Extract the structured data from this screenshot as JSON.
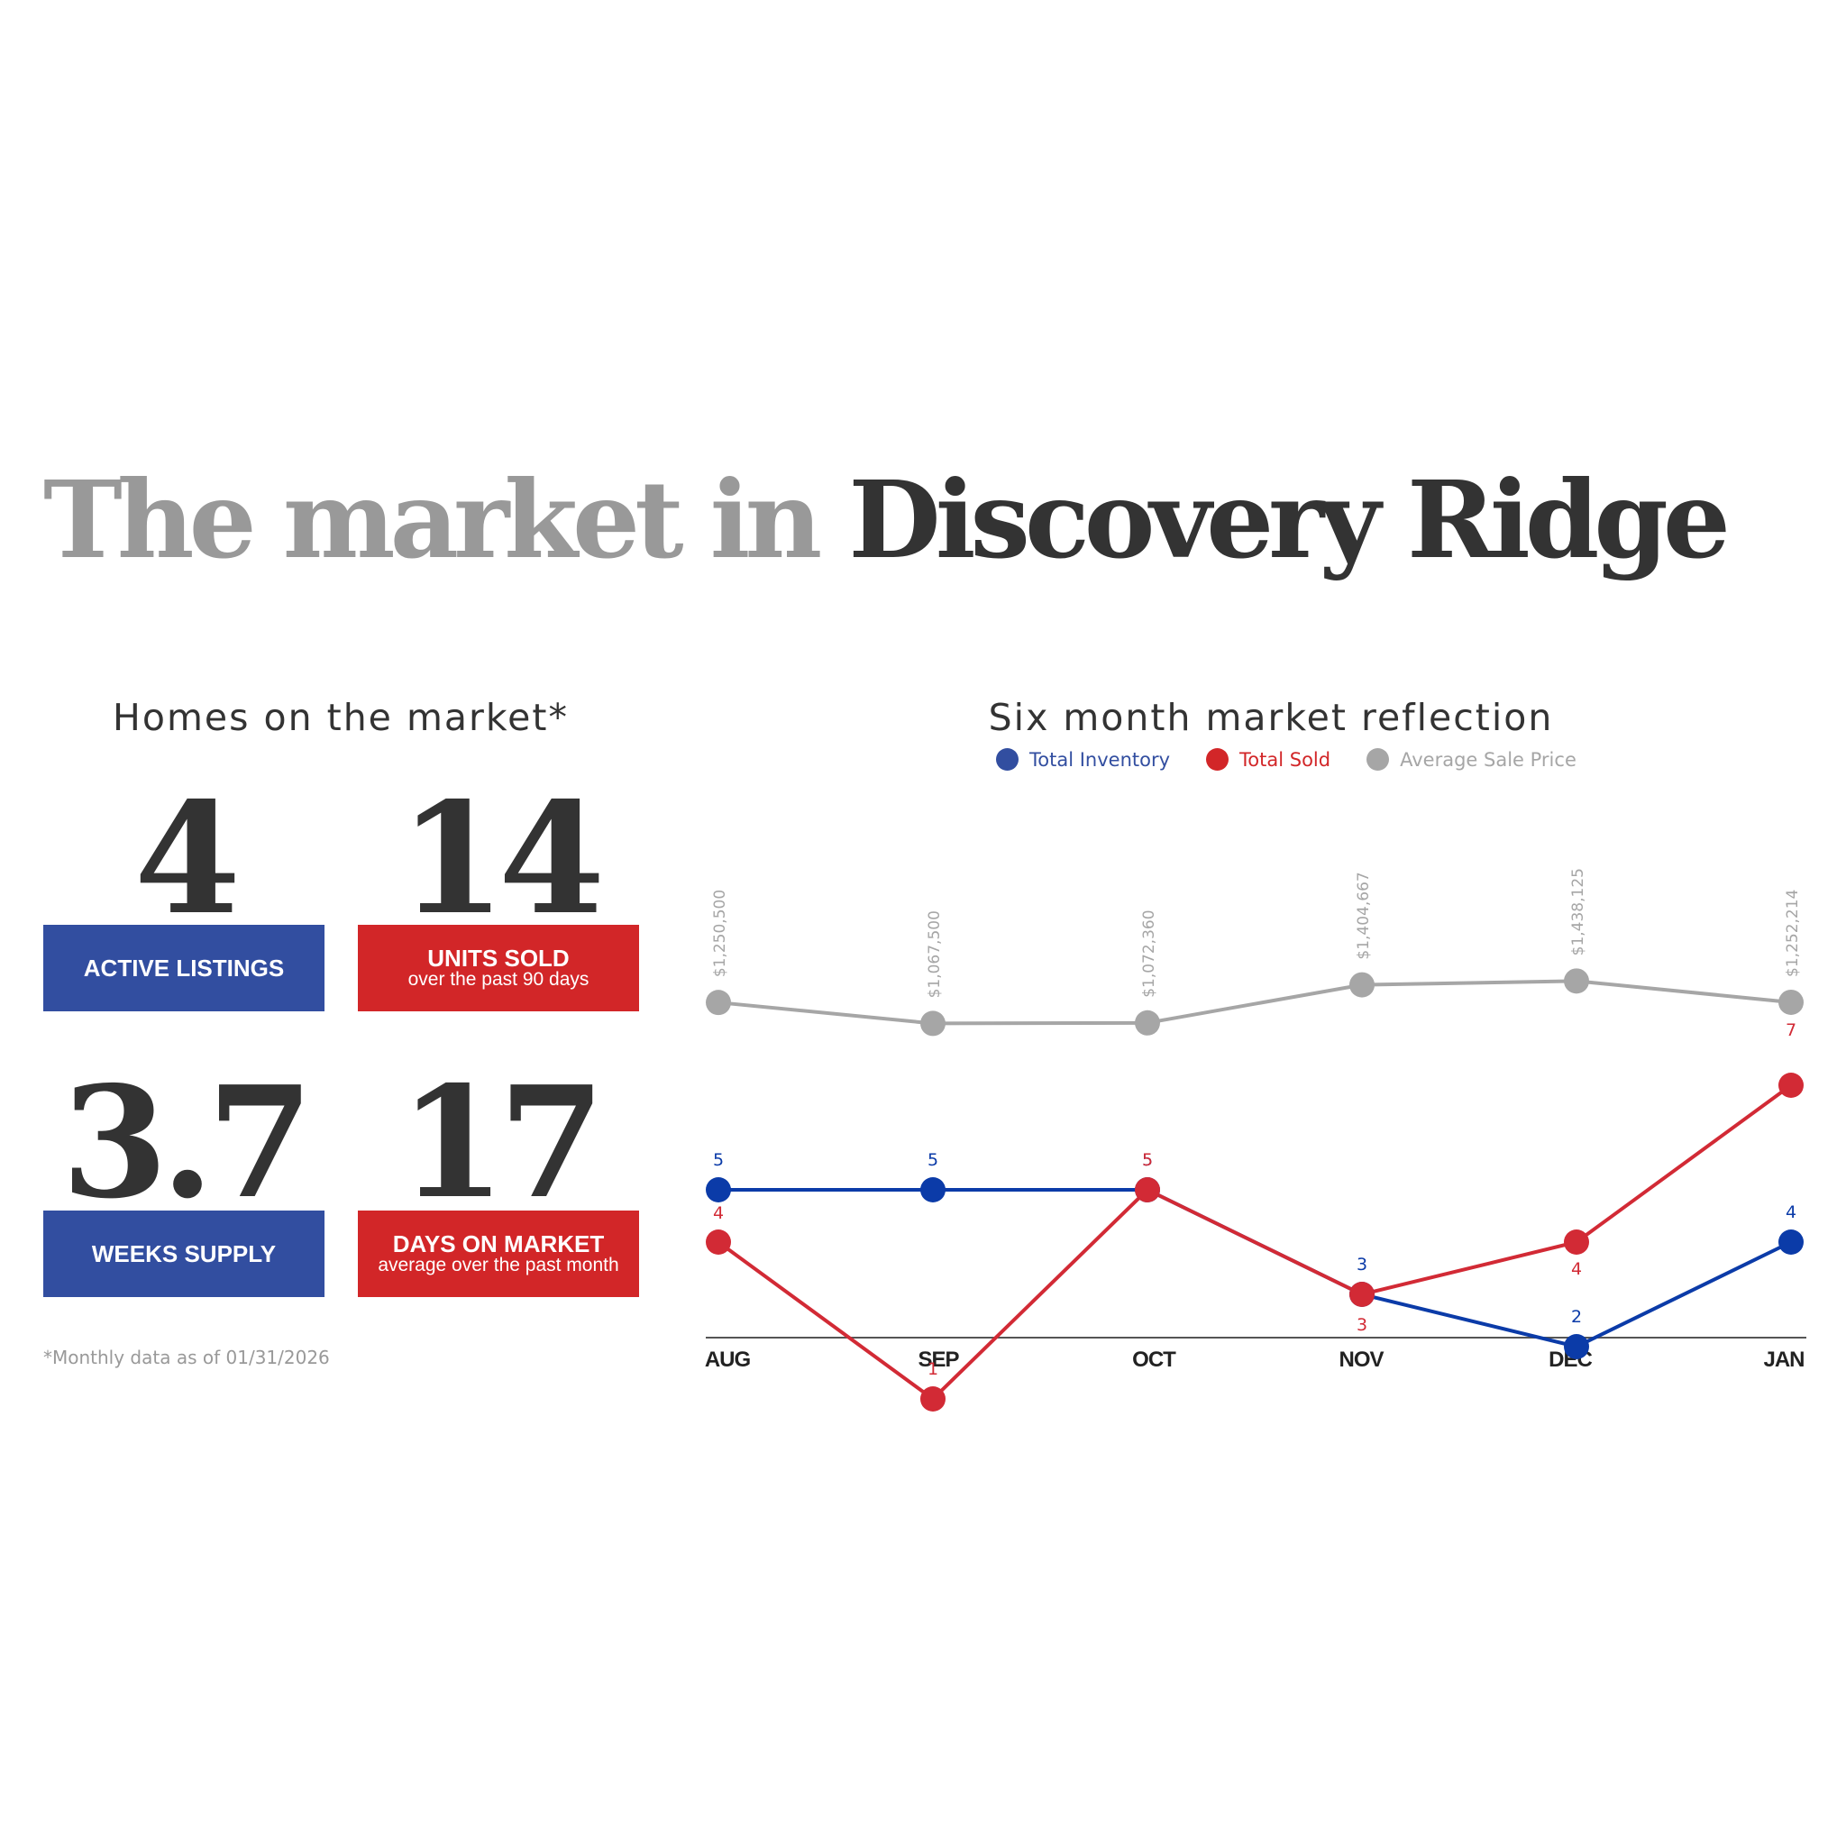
{
  "headline": {
    "part1": "The market in ",
    "part2": "Discovery Ridge"
  },
  "homes": {
    "title": "Homes on the market*",
    "stats": [
      {
        "value": "4",
        "label": "ACTIVE LISTINGS",
        "sublabel": "",
        "color": "#324ea0"
      },
      {
        "value": "14",
        "label": "UNITS SOLD",
        "sublabel": "over the past 90 days",
        "color": "#d22628"
      },
      {
        "value": "3.7",
        "label": "WEEKS SUPPLY",
        "sublabel": "",
        "color": "#324ea0"
      },
      {
        "value": "17",
        "label": "DAYS ON MARKET",
        "sublabel": "average over the past month",
        "color": "#d22628"
      }
    ],
    "footnote": "*Monthly data as of 01/31/2026"
  },
  "chart_data": {
    "type": "line",
    "title": "Six month market reflection",
    "categories": [
      "AUG",
      "SEP",
      "OCT",
      "NOV",
      "DEC",
      "JAN"
    ],
    "series": [
      {
        "name": "Total Inventory",
        "color": "#0b3ba8",
        "values": [
          5,
          5,
          5,
          3,
          2,
          4
        ]
      },
      {
        "name": "Total Sold",
        "color": "#d22a35",
        "values": [
          4,
          1,
          5,
          3,
          4,
          7
        ]
      },
      {
        "name": "Average Sale Price",
        "color": "#a6a6a6",
        "values": [
          1250500,
          1067500,
          1072360,
          1404667,
          1438125,
          1252214
        ]
      }
    ],
    "price_labels": [
      "$1,250,500",
      "$1,067,500",
      "$1,072,360",
      "$1,404,667",
      "$1,438,125",
      "$1,252,214"
    ],
    "legend_position": "top",
    "grid": false
  }
}
